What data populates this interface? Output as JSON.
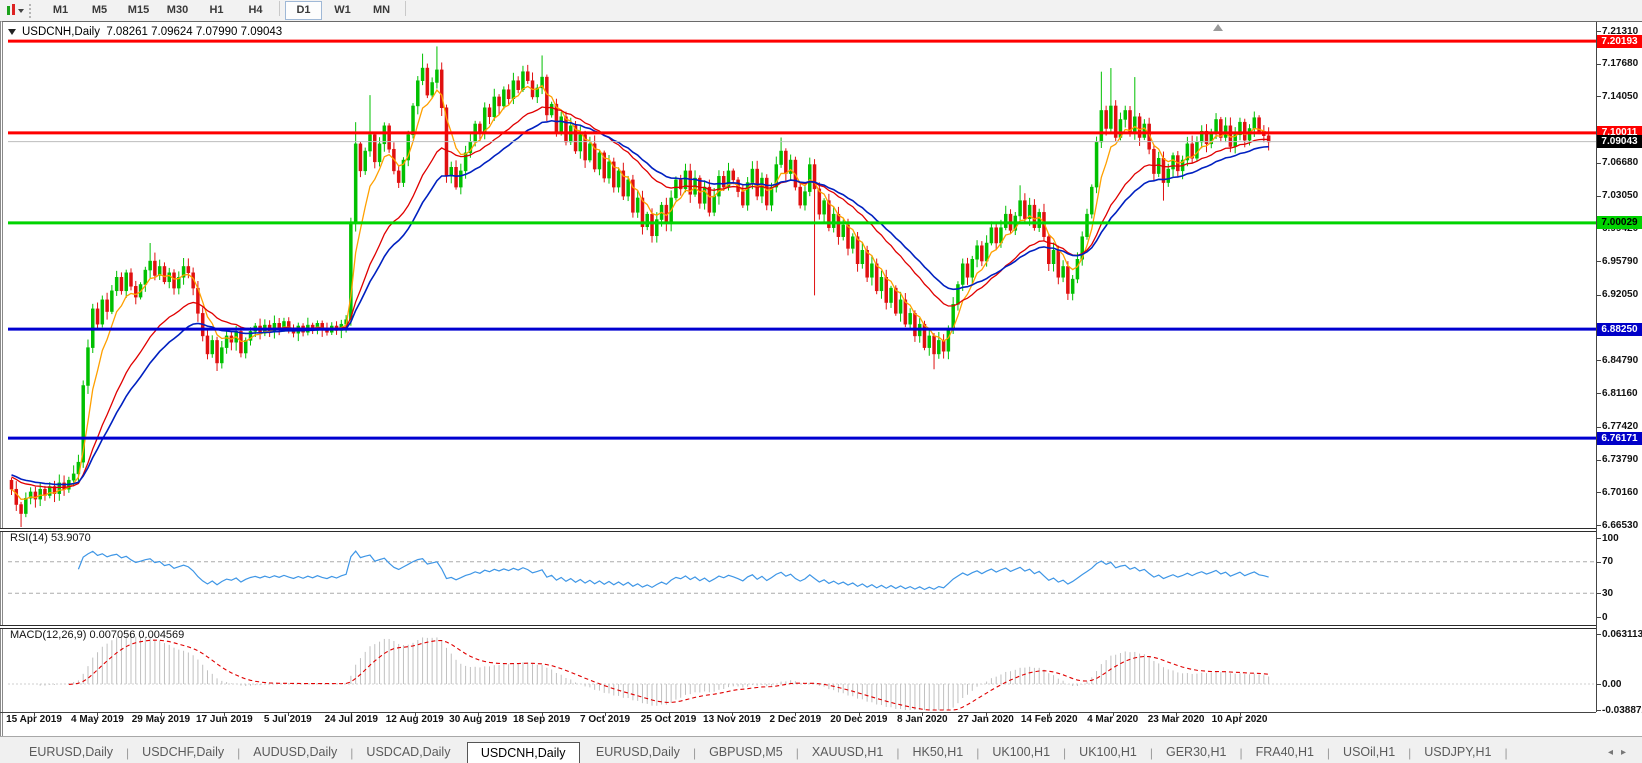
{
  "toolbar": {
    "timeframes": [
      {
        "label": "M1"
      },
      {
        "label": "M5"
      },
      {
        "label": "M15"
      },
      {
        "label": "M30"
      },
      {
        "label": "H1"
      },
      {
        "label": "H4"
      },
      {
        "label": "D1"
      },
      {
        "label": "W1"
      },
      {
        "label": "MN"
      }
    ],
    "active_timeframe": "D1"
  },
  "chart": {
    "title_symbol": "USDCNH,Daily",
    "title_quotes": "7.08261 7.09624 7.07990 7.09043"
  },
  "rsi_panel": {
    "label": "RSI(14) 53.9070"
  },
  "macd_panel": {
    "label": "MACD(12,26,9) 0.007056 0.004569"
  },
  "tabs": {
    "items": [
      "EURUSD,Daily",
      "USDCHF,Daily",
      "AUDUSD,Daily",
      "USDCAD,Daily",
      "USDCNH,Daily",
      "EURUSD,Daily",
      "GBPUSD,M5",
      "XAUUSD,H1",
      "HK50,H1",
      "UK100,H1",
      "UK100,H1",
      "GER30,H1",
      "FRA40,H1",
      "USOil,H1",
      "USDJPY,H1"
    ],
    "active_index": 4,
    "left_arrow": "◂",
    "right_arrow": "▸"
  },
  "colors": {
    "up_candle": "#00C000",
    "down_candle": "#E01010",
    "ma_fast": "#FFA000",
    "ma_mid": "#E00000",
    "ma_slow": "#0020C0",
    "rsi_line": "#3E96E6",
    "rsi_dashed": "#ababab",
    "macd_hist": "#c0c0c0",
    "macd_signal": "#E00000",
    "level_red": "#FF0000",
    "level_green": "#00D400",
    "level_blue": "#0000D0",
    "current_price_line": "#bdbdbd",
    "axis": "#444444"
  },
  "chart_data": {
    "type": "candlestick",
    "symbol": "USDCNH",
    "timeframe": "Daily",
    "ohlc_header": {
      "open": "7.08261",
      "high": "7.09624",
      "low": "7.07990",
      "close": "7.09043"
    },
    "x_axis_dates": [
      "15 Apr 2019",
      "4 May 2019",
      "29 May 2019",
      "17 Jun 2019",
      "5 Jul 2019",
      "24 Jul 2019",
      "12 Aug 2019",
      "30 Aug 2019",
      "18 Sep 2019",
      "7 Oct 2019",
      "25 Oct 2019",
      "13 Nov 2019",
      "2 Dec 2019",
      "20 Dec 2019",
      "8 Jan 2020",
      "27 Jan 2020",
      "14 Feb 2020",
      "4 Mar 2020",
      "23 Mar 2020",
      "10 Apr 2020"
    ],
    "y_axis": {
      "top": 7.2131,
      "bottom": 6.6653,
      "ticks": [
        {
          "label": "7.21310",
          "value": 7.2131
        },
        {
          "label": "7.17680",
          "value": 7.1768
        },
        {
          "label": "7.14050",
          "value": 7.1405
        },
        {
          "label": "7.06680",
          "value": 7.0668
        },
        {
          "label": "7.03050",
          "value": 7.0305
        },
        {
          "label": "6.99420",
          "value": 6.9942
        },
        {
          "label": "6.95790",
          "value": 6.9579
        },
        {
          "label": "6.92050",
          "value": 6.9205
        },
        {
          "label": "6.84790",
          "value": 6.8479
        },
        {
          "label": "6.81160",
          "value": 6.8116
        },
        {
          "label": "6.77420",
          "value": 6.7742
        },
        {
          "label": "6.73790",
          "value": 6.7379
        },
        {
          "label": "6.70160",
          "value": 6.7016
        },
        {
          "label": "6.66530",
          "value": 6.6653
        }
      ]
    },
    "levels": [
      {
        "label": "7.20193",
        "value": 7.20193,
        "line_color": "#FF0000",
        "width": 3,
        "bg": "#FF0000",
        "fg": "#FFFFFF"
      },
      {
        "label": "7.10011",
        "value": 7.10011,
        "line_color": "#FF0000",
        "width": 3,
        "bg": "#FF0000",
        "fg": "#FFFFFF"
      },
      {
        "label": "7.09043",
        "value": 7.09043,
        "line_color": "#bdbdbd",
        "width": 1,
        "bg": "#000000",
        "fg": "#FFFFFF"
      },
      {
        "label": "7.00029",
        "value": 7.00029,
        "line_color": "#00D400",
        "width": 3,
        "bg": "#00D400",
        "fg": "#000000"
      },
      {
        "label": "6.88250",
        "value": 6.8825,
        "line_color": "#0000D0",
        "width": 3,
        "bg": "#0000C8",
        "fg": "#FFFFFF"
      },
      {
        "label": "6.76171",
        "value": 6.76171,
        "line_color": "#0000D0",
        "width": 3,
        "bg": "#0000C8",
        "fg": "#FFFFFF"
      }
    ],
    "first_open": 6.715,
    "closes": [
      6.705,
      6.688,
      6.678,
      6.695,
      6.702,
      6.694,
      6.705,
      6.698,
      6.708,
      6.7,
      6.712,
      6.705,
      6.715,
      6.722,
      6.735,
      6.82,
      6.862,
      6.905,
      6.888,
      6.915,
      6.902,
      6.925,
      6.94,
      6.925,
      6.945,
      6.93,
      6.918,
      6.932,
      6.948,
      6.958,
      6.942,
      6.952,
      6.935,
      6.945,
      6.928,
      6.94,
      6.952,
      6.945,
      6.928,
      6.9,
      6.875,
      6.855,
      6.87,
      6.845,
      6.862,
      6.875,
      6.868,
      6.88,
      6.856,
      6.87,
      6.88,
      6.886,
      6.878,
      6.887,
      6.88,
      6.889,
      6.882,
      6.891,
      6.884,
      6.878,
      6.886,
      6.879,
      6.887,
      6.881,
      6.889,
      6.883,
      6.879,
      6.886,
      6.881,
      6.888,
      6.893,
      7.0,
      7.088,
      7.058,
      7.08,
      7.098,
      7.068,
      7.088,
      7.108,
      7.082,
      7.058,
      7.045,
      7.07,
      7.098,
      7.13,
      7.158,
      7.172,
      7.142,
      7.156,
      7.17,
      7.128,
      7.052,
      7.062,
      7.04,
      7.058,
      7.078,
      7.09,
      7.11,
      7.1,
      7.128,
      7.118,
      7.14,
      7.13,
      7.148,
      7.138,
      7.158,
      7.148,
      7.168,
      7.158,
      7.14,
      7.15,
      7.162,
      7.12,
      7.132,
      7.1,
      7.118,
      7.09,
      7.108,
      7.08,
      7.098,
      7.07,
      7.088,
      7.06,
      7.078,
      7.05,
      7.068,
      7.04,
      7.058,
      7.03,
      7.048,
      7.012,
      7.028,
      6.996,
      7.01,
      6.986,
      7.004,
      7.02,
      7.0,
      7.028,
      7.048,
      7.038,
      7.058,
      7.032,
      7.05,
      7.022,
      7.04,
      7.012,
      7.03,
      7.052,
      7.04,
      7.058,
      7.048,
      7.035,
      7.02,
      7.045,
      7.06,
      7.03,
      7.05,
      7.02,
      7.04,
      7.065,
      7.08,
      7.055,
      7.07,
      7.04,
      7.02,
      7.035,
      7.065,
      7.038,
      7.01,
      7.025,
      6.995,
      7.01,
      6.985,
      6.998,
      6.972,
      6.985,
      6.955,
      6.97,
      6.94,
      6.955,
      6.925,
      6.94,
      6.912,
      6.928,
      6.9,
      6.915,
      6.888,
      6.9,
      6.875,
      6.888,
      6.862,
      6.875,
      6.855,
      6.87,
      6.858,
      6.882,
      6.91,
      6.932,
      6.955,
      6.94,
      6.96,
      6.975,
      6.958,
      6.978,
      6.995,
      6.978,
      6.995,
      7.01,
      6.992,
      7.008,
      7.025,
      7.005,
      7.02,
      6.995,
      7.012,
      6.985,
      6.955,
      6.97,
      6.94,
      6.952,
      6.922,
      6.938,
      6.96,
      6.985,
      7.01,
      7.04,
      7.09,
      7.125,
      7.105,
      7.13,
      7.095,
      7.115,
      7.125,
      7.1,
      7.118,
      7.095,
      7.11,
      7.082,
      7.055,
      7.072,
      7.045,
      7.06,
      7.075,
      7.058,
      7.07,
      7.088,
      7.072,
      7.09,
      7.102,
      7.088,
      7.1,
      7.115,
      7.095,
      7.108,
      7.085,
      7.098,
      7.112,
      7.092,
      7.105,
      7.117,
      7.102,
      7.097,
      7.09
    ],
    "wick_overrides": {
      "2": {
        "low": 6.662
      },
      "29": {
        "high": 6.978
      },
      "72": {
        "high": 7.112
      },
      "75": {
        "high": 7.142
      },
      "86": {
        "high": 7.188
      },
      "89": {
        "high": 7.196
      },
      "111": {
        "high": 7.186
      },
      "161": {
        "high": 7.095
      },
      "168": {
        "low": 6.92
      },
      "193": {
        "low": 6.838
      },
      "211": {
        "high": 7.042
      },
      "228": {
        "high": 7.168
      },
      "230": {
        "high": 7.172
      },
      "235": {
        "high": 7.162
      },
      "241": {
        "low": 7.025
      }
    },
    "moving_averages": [
      {
        "name": "fast",
        "period": 6,
        "seed": 6.705,
        "color": "#FFA000",
        "width": 1.3
      },
      {
        "name": "mid",
        "period": 21,
        "seed": 6.72,
        "color": "#E00000",
        "width": 1.3
      },
      {
        "name": "slow",
        "period": 30,
        "seed": 6.722,
        "color": "#0020C0",
        "width": 1.6
      }
    ],
    "rsi": {
      "period": 14,
      "current": "53.9070",
      "scale_ticks": [
        {
          "label": "100",
          "value": 100
        },
        {
          "label": "70",
          "value": 70,
          "dashed": true
        },
        {
          "label": "30",
          "value": 30,
          "dashed": true
        },
        {
          "label": "0",
          "value": 0
        }
      ]
    },
    "macd": {
      "fast": 12,
      "slow": 26,
      "signal": 9,
      "current_macd": "0.007056",
      "current_signal": "0.004569",
      "scale_ticks": [
        {
          "label": "0.063113",
          "value": 0.063113
        },
        {
          "label": "0.00",
          "value": 0
        },
        {
          "label": "-0.038872",
          "value": -0.038872
        }
      ]
    }
  }
}
